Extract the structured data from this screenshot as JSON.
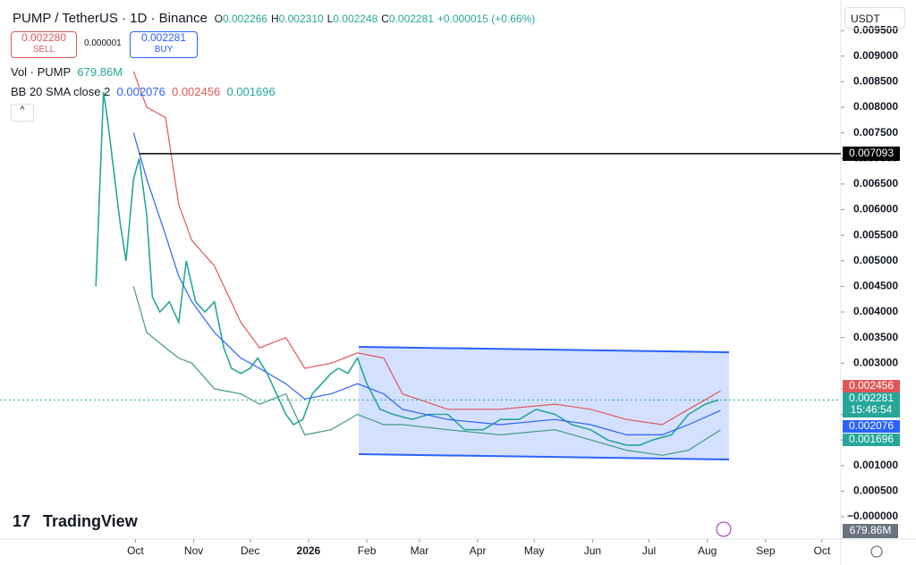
{
  "header": {
    "symbol": "PUMP / TetherUS · 1D · Binance",
    "open_prefix": "O",
    "open": "0.002266",
    "high_prefix": "H",
    "high": "0.002310",
    "low_prefix": "L",
    "low": "0.002248",
    "close_prefix": "C",
    "close": "0.002281",
    "change": "+0.000015 (+0.66%)",
    "sell_price": "0.002280",
    "sell_label": "SELL",
    "spread": "0.000001",
    "buy_price": "0.002281",
    "buy_label": "BUY",
    "currency": "USDT",
    "volume_label": "Vol · PUMP",
    "volume_value": "679.86M",
    "bb_label": "BB 20 SMA close 2",
    "bb_basis": "0.002076",
    "bb_upper": "0.002456",
    "bb_lower": "0.001696",
    "brand": "TradingView",
    "volume_axis_label": "679.86M"
  },
  "chart_data": {
    "type": "line",
    "xlim": [
      -72,
      375
    ],
    "xticks": [
      {
        "value": 0,
        "label": "Oct"
      },
      {
        "value": 31,
        "label": "Nov"
      },
      {
        "value": 61,
        "label": "Dec"
      },
      {
        "value": 92,
        "label": "2026"
      },
      {
        "value": 123,
        "label": "Feb"
      },
      {
        "value": 151,
        "label": "Mar"
      },
      {
        "value": 182,
        "label": "Apr"
      },
      {
        "value": 212,
        "label": "May"
      },
      {
        "value": 243,
        "label": "Jun"
      },
      {
        "value": 273,
        "label": "Jul"
      },
      {
        "value": 304,
        "label": "Aug"
      },
      {
        "value": 335,
        "label": "Sep"
      },
      {
        "value": 365,
        "label": "Oct"
      }
    ],
    "ylim": [
      -0.000384,
      0.010096
    ],
    "yticks": [
      {
        "value": 0,
        "label": "−0.000000"
      },
      {
        "value": 0.0005,
        "label": "0.000500"
      },
      {
        "value": 0.001,
        "label": "0.001000"
      },
      {
        "value": 0.0015,
        "label": "0.001500"
      },
      {
        "value": 0.002,
        "label": "0.002000"
      },
      {
        "value": 0.0025,
        "label": "0.002500"
      },
      {
        "value": 0.003,
        "label": "0.003000"
      },
      {
        "value": 0.0035,
        "label": "0.003500"
      },
      {
        "value": 0.004,
        "label": "0.004000"
      },
      {
        "value": 0.0045,
        "label": "0.004500"
      },
      {
        "value": 0.005,
        "label": "0.005000"
      },
      {
        "value": 0.0055,
        "label": "0.005500"
      },
      {
        "value": 0.006,
        "label": "0.006000"
      },
      {
        "value": 0.0065,
        "label": "0.006500"
      },
      {
        "value": 0.007,
        "label": "0.007000"
      },
      {
        "value": 0.0075,
        "label": "0.007500"
      },
      {
        "value": 0.008,
        "label": "0.008000"
      },
      {
        "value": 0.0085,
        "label": "0.008500"
      },
      {
        "value": 0.009,
        "label": "0.009000"
      },
      {
        "value": 0.0095,
        "label": "0.009500"
      }
    ],
    "series": [
      {
        "name": "PUMP",
        "color": "#26a69a",
        "x": [
          -21,
          -17,
          -15,
          -11,
          -8,
          -5,
          -1,
          2,
          6,
          9,
          13,
          18,
          23,
          27,
          32,
          37,
          42,
          47,
          51,
          56,
          61,
          65,
          70,
          75,
          80,
          84,
          89,
          94,
          99,
          104,
          108,
          113,
          118,
          123,
          130,
          137,
          147,
          156,
          166,
          175,
          185,
          194,
          204,
          213,
          223,
          232,
          242,
          251,
          261,
          268,
          275,
          285,
          294,
          303,
          310
        ],
        "values": [
          0.0045,
          0.0083,
          0.0078,
          0.0066,
          0.0057,
          0.005,
          0.0066,
          0.007,
          0.0059,
          0.0043,
          0.004,
          0.0042,
          0.0038,
          0.005,
          0.0042,
          0.004,
          0.0042,
          0.0033,
          0.0029,
          0.0028,
          0.0029,
          0.0031,
          0.0028,
          0.0024,
          0.002,
          0.0018,
          0.0019,
          0.0024,
          0.0026,
          0.0028,
          0.0029,
          0.0028,
          0.0031,
          0.0026,
          0.0021,
          0.002,
          0.0019,
          0.002,
          0.002,
          0.0017,
          0.0017,
          0.0019,
          0.0019,
          0.0021,
          0.002,
          0.0018,
          0.0017,
          0.0015,
          0.0014,
          0.0014,
          0.0015,
          0.0016,
          0.002,
          0.0022,
          0.002281
        ]
      },
      {
        "name": "BB upper",
        "color": "#e05757",
        "x": [
          -1,
          6,
          16,
          23,
          30,
          42,
          56,
          66,
          80,
          90,
          104,
          118,
          132,
          142,
          166,
          194,
          223,
          242,
          261,
          280,
          294,
          311
        ],
        "values": [
          0.0087,
          0.008,
          0.0078,
          0.0061,
          0.0054,
          0.0049,
          0.0038,
          0.0033,
          0.0035,
          0.0029,
          0.003,
          0.0032,
          0.0031,
          0.0024,
          0.0021,
          0.0021,
          0.0022,
          0.0021,
          0.0019,
          0.0018,
          0.0021,
          0.002456
        ]
      },
      {
        "name": "BB basis",
        "color": "#2962ff",
        "x": [
          -1,
          6,
          16,
          23,
          30,
          42,
          56,
          66,
          80,
          90,
          104,
          118,
          132,
          142,
          166,
          194,
          223,
          242,
          261,
          280,
          294,
          311
        ],
        "values": [
          0.0075,
          0.0066,
          0.0055,
          0.0047,
          0.0042,
          0.0036,
          0.0031,
          0.0029,
          0.0026,
          0.0023,
          0.0024,
          0.0026,
          0.0024,
          0.0021,
          0.0019,
          0.0018,
          0.0019,
          0.0018,
          0.0016,
          0.0016,
          0.0018,
          0.002076
        ]
      },
      {
        "name": "BB lower",
        "color": "#3f9c7e",
        "x": [
          -1,
          6,
          16,
          23,
          30,
          42,
          56,
          66,
          80,
          90,
          104,
          118,
          132,
          142,
          166,
          194,
          223,
          242,
          261,
          280,
          294,
          311
        ],
        "values": [
          0.0045,
          0.0036,
          0.0033,
          0.0031,
          0.003,
          0.0025,
          0.0024,
          0.0022,
          0.0024,
          0.0016,
          0.0017,
          0.002,
          0.0018,
          0.0018,
          0.0017,
          0.0016,
          0.0017,
          0.0015,
          0.0013,
          0.0012,
          0.0013,
          0.001696
        ]
      }
    ],
    "horizontal_line": {
      "value": 0.007093,
      "label": "0.007093",
      "color": "#000000"
    },
    "price_labels": [
      {
        "value": 0.002456,
        "label": "0.002456",
        "color": "#e05757"
      },
      {
        "value": 0.002281,
        "label": "0.002281",
        "color": "#26a69a",
        "countdown": "15:46:54"
      },
      {
        "value": 0.002076,
        "label": "0.002076",
        "color": "#2962ff"
      },
      {
        "value": 0.001696,
        "label": "0.001696",
        "color": "#26a69a"
      }
    ]
  }
}
